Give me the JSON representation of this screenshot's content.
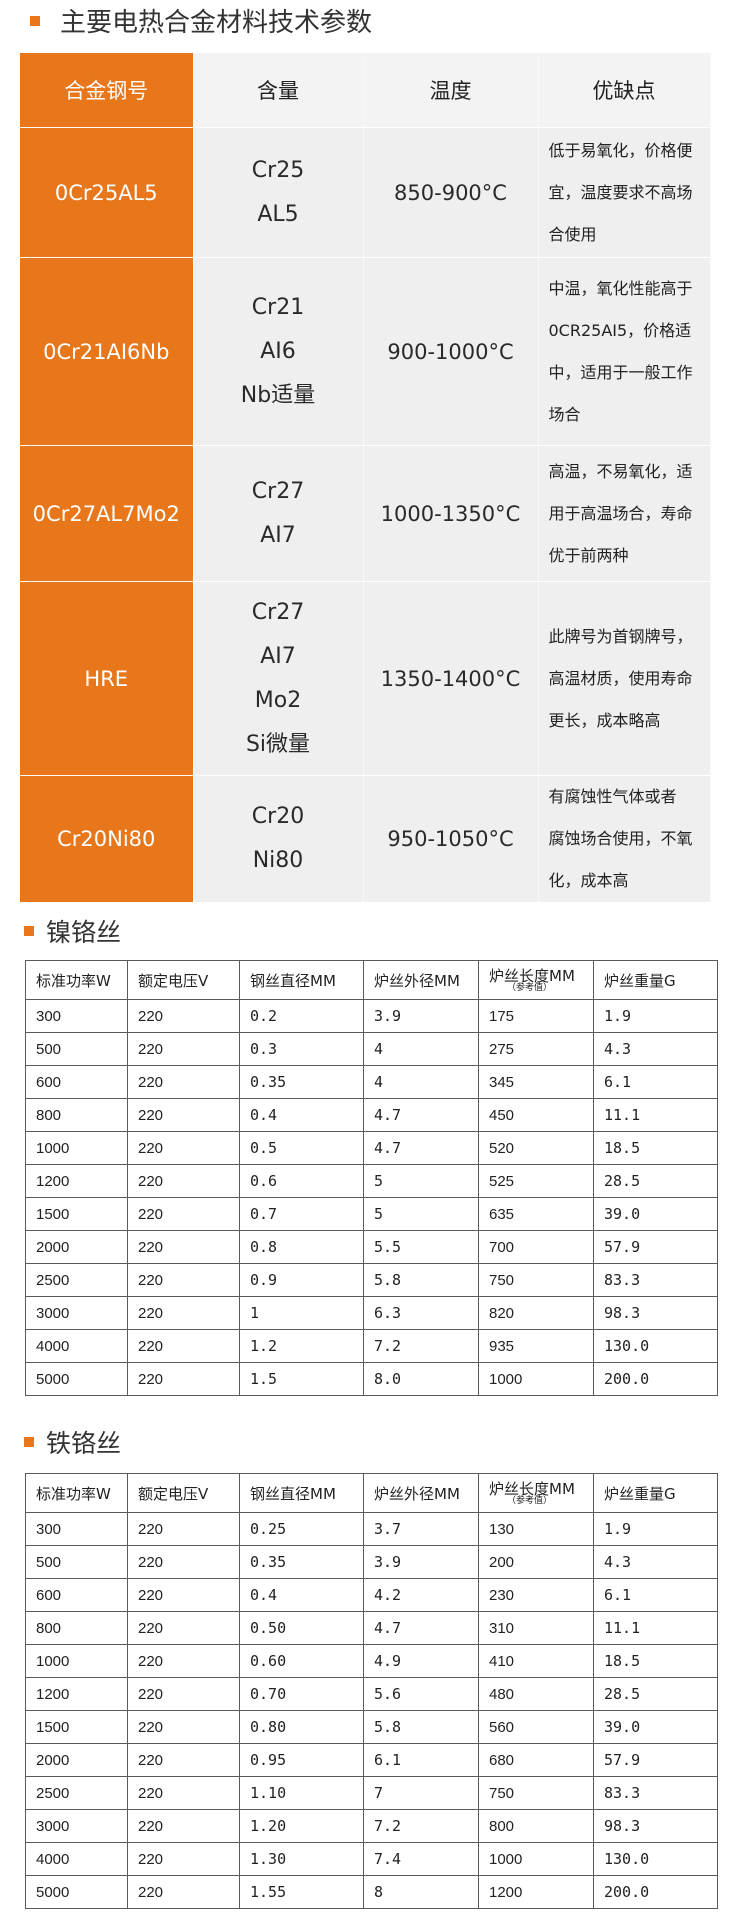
{
  "title": "主要电热合金材料技术参数",
  "alloy_table": {
    "headers": [
      "合金钢号",
      "含量",
      "温度",
      "优缺点"
    ],
    "rows": [
      {
        "grade": "0Cr25AL5",
        "content": [
          "Cr25",
          "AL5"
        ],
        "temp": "850-900°C",
        "pros": [
          "低于易氧化，价格便",
          "宜，温度要求不高场",
          "合使用"
        ]
      },
      {
        "grade": "0Cr21AI6Nb",
        "content": [
          "Cr21",
          "AI6",
          "Nb适量"
        ],
        "temp": "900-1000°C",
        "pros": [
          "中温，氧化性能高于",
          "0CR25AI5，价格适",
          "中，适用于一般工作",
          "场合"
        ]
      },
      {
        "grade": "0Cr27AL7Mo2",
        "content": [
          "Cr27",
          "AI7"
        ],
        "temp": "1000-1350°C",
        "pros": [
          "高温，不易氧化，适",
          "用于高温场合，寿命",
          "优于前两种"
        ]
      },
      {
        "grade": "HRE",
        "content": [
          "Cr27",
          "AI7",
          "Mo2",
          "Si微量"
        ],
        "temp": "1350-1400°C",
        "pros": [
          "此牌号为首钢牌号，",
          "高温材质，使用寿命",
          "更长，成本略高"
        ]
      },
      {
        "grade": "Cr20Ni80",
        "content": [
          "Cr20",
          "Ni80"
        ],
        "temp": "950-1050°C",
        "pros": [
          "有腐蚀性气体或者",
          "腐蚀场合使用，不氧",
          "化，成本高"
        ]
      }
    ]
  },
  "nichrome": {
    "title": "镍铬丝",
    "headers": [
      "标准功率W",
      "额定电压V",
      "钢丝直径MM",
      "炉丝外径MM",
      "炉丝长度MM",
      "炉丝重量G"
    ],
    "length_note": "（参考值）",
    "rows": [
      [
        "300",
        "220",
        "0.2",
        "3.9",
        "175",
        "1.9"
      ],
      [
        "500",
        "220",
        "0.3",
        "4",
        "275",
        "4.3"
      ],
      [
        "600",
        "220",
        "0.35",
        "4",
        "345",
        "6.1"
      ],
      [
        "800",
        "220",
        "0.4",
        "4.7",
        "450",
        "11.1"
      ],
      [
        "1000",
        "220",
        "0.5",
        "4.7",
        "520",
        "18.5"
      ],
      [
        "1200",
        "220",
        "0.6",
        "5",
        "525",
        "28.5"
      ],
      [
        "1500",
        "220",
        "0.7",
        "5",
        "635",
        "39.0"
      ],
      [
        "2000",
        "220",
        "0.8",
        "5.5",
        "700",
        "57.9"
      ],
      [
        "2500",
        "220",
        "0.9",
        "5.8",
        "750",
        "83.3"
      ],
      [
        "3000",
        "220",
        "1",
        "6.3",
        "820",
        "98.3"
      ],
      [
        "4000",
        "220",
        "1.2",
        "7.2",
        "935",
        "130.0"
      ],
      [
        "5000",
        "220",
        "1.5",
        "8.0",
        "1000",
        "200.0"
      ]
    ]
  },
  "iron_chrome": {
    "title": "铁铬丝",
    "headers": [
      "标准功率W",
      "额定电压V",
      "钢丝直径MM",
      "炉丝外径MM",
      "炉丝长度MM",
      "炉丝重量G"
    ],
    "length_note": "（参考值）",
    "rows": [
      [
        "300",
        "220",
        "0.25",
        "3.7",
        "130",
        "1.9"
      ],
      [
        "500",
        "220",
        "0.35",
        "3.9",
        "200",
        "4.3"
      ],
      [
        "600",
        "220",
        "0.4",
        "4.2",
        "230",
        "6.1"
      ],
      [
        "800",
        "220",
        "0.50",
        "4.7",
        "310",
        "11.1"
      ],
      [
        "1000",
        "220",
        "0.60",
        "4.9",
        "410",
        "18.5"
      ],
      [
        "1200",
        "220",
        "0.70",
        "5.6",
        "480",
        "28.5"
      ],
      [
        "1500",
        "220",
        "0.80",
        "5.8",
        "560",
        "39.0"
      ],
      [
        "2000",
        "220",
        "0.95",
        "6.1",
        "680",
        "57.9"
      ],
      [
        "2500",
        "220",
        "1.10",
        "7",
        "750",
        "83.3"
      ],
      [
        "3000",
        "220",
        "1.20",
        "7.2",
        "800",
        "98.3"
      ],
      [
        "4000",
        "220",
        "1.30",
        "7.4",
        "1000",
        "130.0"
      ],
      [
        "5000",
        "220",
        "1.55",
        "8",
        "1200",
        "200.0"
      ]
    ]
  }
}
